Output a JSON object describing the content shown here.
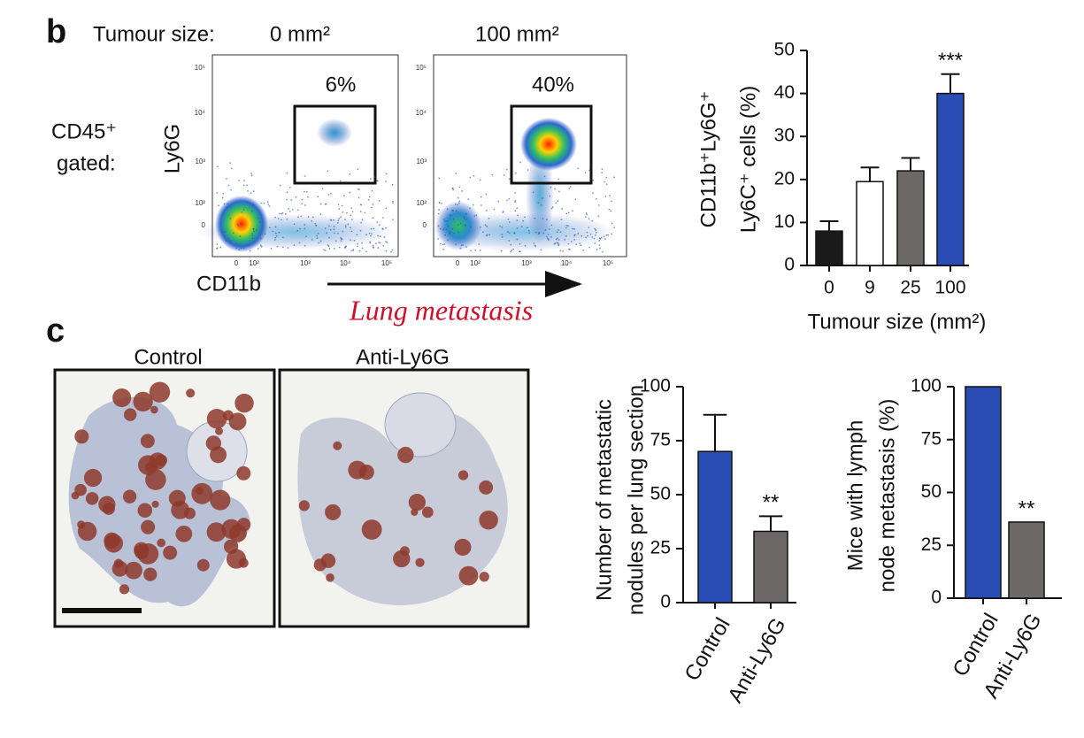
{
  "panels": [
    "b",
    "c"
  ],
  "flow": {
    "prefix": "Tumour size:",
    "plots": [
      {
        "title": "0 mm²",
        "gate": "6%"
      },
      {
        "title": "100 mm²",
        "gate": "40%"
      }
    ],
    "gating_label": [
      "CD45⁺",
      "gated:"
    ],
    "y_label": "Ly6G",
    "x_label": "CD11b",
    "arrow_label": "Lung metastasis",
    "axis_ticks": [
      "0",
      "10²",
      "10³",
      "10⁴",
      "10⁵"
    ]
  },
  "histology": {
    "titles": [
      "Control",
      "Anti-Ly6G"
    ]
  },
  "chart_data": [
    {
      "type": "bar",
      "categories": [
        "0",
        "9",
        "25",
        "100"
      ],
      "values": [
        8,
        19.5,
        22,
        40
      ],
      "errors": [
        2.3,
        3.3,
        3,
        4.5
      ],
      "colors": [
        "#1a1a1a",
        "#ffffff",
        "#6d6868",
        "#2a4db5"
      ],
      "significance": [
        null,
        null,
        null,
        "***"
      ],
      "ylim": [
        0,
        50
      ],
      "yticks": [
        0,
        10,
        20,
        30,
        40,
        50
      ],
      "ylabel": [
        "CD11b⁺Ly6G⁺",
        "Ly6C⁺ cells (%)"
      ],
      "xlabel": "Tumour size (mm²)"
    },
    {
      "type": "bar",
      "categories": [
        "Control",
        "Anti-Ly6G"
      ],
      "values": [
        70,
        33
      ],
      "errors": [
        17,
        7
      ],
      "colors": [
        "#2a4db5",
        "#6d6868"
      ],
      "significance": [
        null,
        "**"
      ],
      "ylim": [
        0,
        100
      ],
      "yticks": [
        0,
        25,
        50,
        75,
        100
      ],
      "ylabel": [
        "Number of metastatic",
        "nodules per lung section"
      ]
    },
    {
      "type": "bar",
      "categories": [
        "Control",
        "Anti-Ly6G"
      ],
      "values": [
        100,
        36
      ],
      "colors": [
        "#2a4db5",
        "#6d6868"
      ],
      "significance": [
        null,
        "**"
      ],
      "ylim": [
        0,
        100
      ],
      "yticks": [
        0,
        25,
        50,
        75,
        100
      ],
      "ylabel": [
        "Mice with lymph",
        "node metastasis (%)"
      ]
    }
  ]
}
